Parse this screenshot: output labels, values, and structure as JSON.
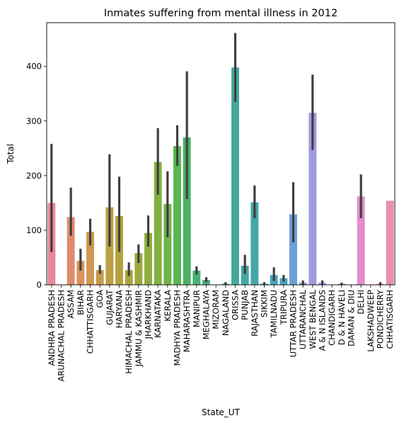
{
  "chart_data": {
    "type": "bar",
    "title": "Inmates suffering from mental illness in 2012",
    "xlabel": "State_UT",
    "ylabel": "Total",
    "ylim": [
      0,
      480
    ],
    "yticks": [
      0,
      100,
      200,
      300,
      400
    ],
    "grid": false,
    "categories": [
      "ANDHRA PRADESH",
      "ARUNACHAL PRADESH",
      "ASSAM",
      "BIHAR",
      "CHHATTISGARH",
      "GOA",
      "GUJARAT",
      "HARYANA",
      "HIMACHAL PRADESH",
      "JAMMU & KASHMIR",
      "JHARKHAND",
      "KARNATAKA",
      "KERALA",
      "MADHYA PRADESH",
      "MAHARASHTRA",
      "MANIPUR",
      "MEGHALAYA",
      "MIZORAM",
      "NAGALAND",
      "ORISSA",
      "PUNJAB",
      "RAJASTHAN",
      "SIKKIM",
      "TAMILNADU",
      "TRIPURA",
      "UTTAR PRADESH",
      "UTTARANCHAL",
      "WEST BENGAL",
      "A & N ISLANDS",
      "CHANDIGARH",
      "D & N HAVELI",
      "DAMAN & DIU",
      "DELHI",
      "LAKSHADWEEP",
      "PONDICHERRY",
      "CHHATISGARH"
    ],
    "values": [
      150,
      0,
      124,
      44,
      97,
      27,
      142,
      126,
      27,
      58,
      95,
      225,
      148,
      254,
      270,
      26,
      9,
      0,
      2,
      398,
      35,
      151,
      2,
      18,
      12,
      129,
      4,
      315,
      4,
      0,
      2,
      0,
      162,
      0,
      2,
      154
    ],
    "error_low": [
      60,
      0,
      90,
      26,
      72,
      20,
      70,
      60,
      16,
      40,
      70,
      165,
      87,
      218,
      157,
      19,
      5,
      0,
      0,
      335,
      20,
      122,
      0,
      7,
      6,
      78,
      0,
      247,
      0,
      0,
      0,
      0,
      122,
      0,
      0,
      null
    ],
    "error_high": [
      258,
      0,
      178,
      66,
      121,
      36,
      239,
      198,
      41,
      74,
      127,
      287,
      208,
      292,
      391,
      34,
      14,
      0,
      5,
      461,
      55,
      182,
      5,
      32,
      18,
      188,
      8,
      385,
      8,
      0,
      4,
      0,
      202,
      0,
      5,
      null
    ],
    "colors": [
      "#e8889a",
      "#e68a84",
      "#e08c6f",
      "#d8925c",
      "#cf9752",
      "#c69b4b",
      "#bd9f45",
      "#b3a240",
      "#a8a63d",
      "#9ea93d",
      "#91ad3f",
      "#83b043",
      "#6fb34b",
      "#58b653",
      "#4ab364",
      "#49b074",
      "#47ae80",
      "#45ac8a",
      "#44aa93",
      "#43a99b",
      "#43a8a3",
      "#44a7aa",
      "#46a6b2",
      "#48a5ba",
      "#4da4c3",
      "#6aa1d5",
      "#869ddd",
      "#a09ae0",
      "#b396df",
      "#c392dc",
      "#d08fd8",
      "#dc8cd2",
      "#e48ccb",
      "#e88cc2",
      "#eb8db9",
      "#ea8fae"
    ],
    "error_color": "#3f3f3f"
  }
}
